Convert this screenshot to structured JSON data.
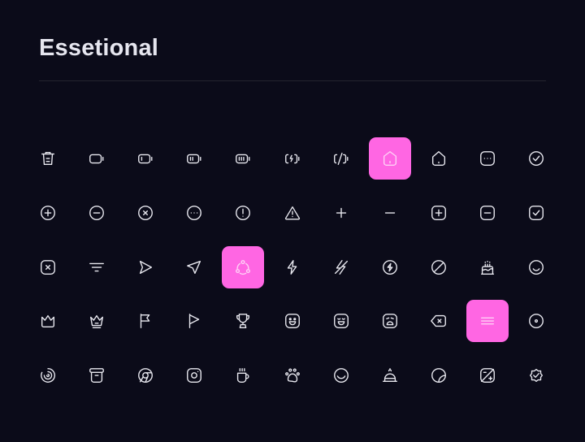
{
  "header": {
    "title": "Essetional"
  },
  "colors": {
    "background": "#0b0b19",
    "accent": "#ff66e3",
    "icon": "#e9e9f0"
  },
  "icons": [
    [
      "trash-icon",
      "battery-empty-icon",
      "battery-low-icon",
      "battery-half-icon",
      "battery-full-icon",
      "battery-charging-icon",
      "battery-disabled-icon",
      "home-icon",
      "home-alt-icon",
      "more-square-icon",
      "tick-circle-icon"
    ],
    [
      "add-circle-icon",
      "minus-circle-icon",
      "close-circle-icon",
      "more-circle-icon",
      "info-circle-icon",
      "danger-icon",
      "add-icon",
      "minus-icon",
      "add-square-icon",
      "minus-square-icon",
      "tick-square-icon"
    ],
    [
      "close-square-icon",
      "sort-icon",
      "send-icon",
      "send-alt-icon",
      "share-icon",
      "flash-icon",
      "flash-slash-icon",
      "flash-circle-icon",
      "forbidden-icon",
      "cake-icon",
      "emoji-normal-icon"
    ],
    [
      "crown-icon",
      "crown-alt-icon",
      "flag-icon",
      "flag-alt-icon",
      "cup-icon",
      "emoji-happy-icon",
      "emoji-laugh-icon",
      "emoji-sad-icon",
      "backspace-icon",
      "menu-icon",
      "record-icon"
    ],
    [
      "loader-icon",
      "archive-icon",
      "chrome-icon",
      "instagram-icon",
      "coffee-icon",
      "paw-icon",
      "smile-icon",
      "reserve-icon",
      "sticker-icon",
      "exposure-icon",
      "verify-icon"
    ]
  ],
  "selected": [
    "home-icon",
    "share-icon",
    "menu-icon"
  ]
}
